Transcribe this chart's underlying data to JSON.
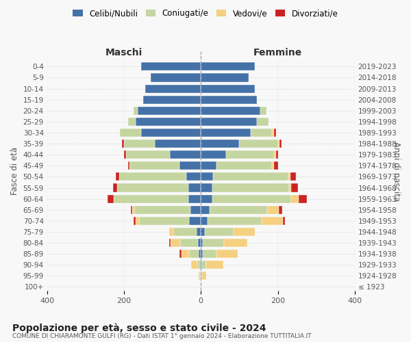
{
  "age_groups": [
    "100+",
    "95-99",
    "90-94",
    "85-89",
    "80-84",
    "75-79",
    "70-74",
    "65-69",
    "60-64",
    "55-59",
    "50-54",
    "45-49",
    "40-44",
    "35-39",
    "30-34",
    "25-29",
    "20-24",
    "15-19",
    "10-14",
    "5-9",
    "0-4"
  ],
  "birth_years": [
    "≤ 1923",
    "1924-1928",
    "1929-1933",
    "1934-1938",
    "1939-1943",
    "1944-1948",
    "1949-1953",
    "1954-1958",
    "1959-1963",
    "1964-1968",
    "1969-1973",
    "1974-1978",
    "1979-1983",
    "1984-1988",
    "1989-1993",
    "1994-1998",
    "1999-2003",
    "2004-2008",
    "2009-2013",
    "2014-2018",
    "2019-2023"
  ],
  "colors": {
    "celibi": "#4472a8",
    "coniugati": "#c5d5a0",
    "vedovi": "#f5d080",
    "divorziati": "#cc2222"
  },
  "maschi": {
    "celibi": [
      0,
      1,
      2,
      5,
      8,
      12,
      30,
      28,
      32,
      33,
      38,
      55,
      80,
      120,
      155,
      170,
      165,
      150,
      145,
      130,
      155
    ],
    "coniugati": [
      0,
      2,
      8,
      25,
      45,
      60,
      130,
      145,
      195,
      185,
      175,
      130,
      115,
      80,
      55,
      20,
      10,
      0,
      0,
      0,
      0
    ],
    "vedovi": [
      0,
      3,
      15,
      20,
      25,
      10,
      10,
      5,
      0,
      0,
      0,
      0,
      0,
      0,
      0,
      0,
      0,
      0,
      0,
      0,
      0
    ],
    "divorziati": [
      0,
      0,
      0,
      5,
      5,
      0,
      5,
      5,
      15,
      10,
      8,
      5,
      5,
      5,
      0,
      0,
      0,
      0,
      0,
      0,
      0
    ]
  },
  "femmine": {
    "celibi": [
      0,
      1,
      2,
      5,
      5,
      10,
      18,
      22,
      30,
      30,
      32,
      40,
      65,
      100,
      130,
      145,
      155,
      145,
      140,
      125,
      140
    ],
    "coniugati": [
      0,
      3,
      12,
      35,
      55,
      75,
      140,
      150,
      205,
      200,
      195,
      145,
      125,
      100,
      55,
      30,
      15,
      0,
      0,
      0,
      0
    ],
    "vedovi": [
      0,
      10,
      45,
      55,
      60,
      55,
      55,
      30,
      20,
      5,
      5,
      5,
      5,
      5,
      5,
      0,
      0,
      0,
      0,
      0,
      0
    ],
    "divorziati": [
      0,
      0,
      0,
      0,
      0,
      0,
      5,
      10,
      20,
      18,
      15,
      10,
      5,
      5,
      5,
      0,
      0,
      0,
      0,
      0,
      0
    ]
  },
  "title": "Popolazione per età, sesso e stato civile - 2024",
  "subtitle": "COMUNE DI CHIARAMONTE GULFI (RG) - Dati ISTAT 1° gennaio 2024 - Elaborazione TUTTITALIA.IT",
  "xlabel_left": "Maschi",
  "xlabel_right": "Femmine",
  "ylabel_left": "Fasce di età",
  "ylabel_right": "Anni di nascita",
  "xlim": 400,
  "bg_color": "#f8f8f8",
  "grid_color": "#cccccc"
}
